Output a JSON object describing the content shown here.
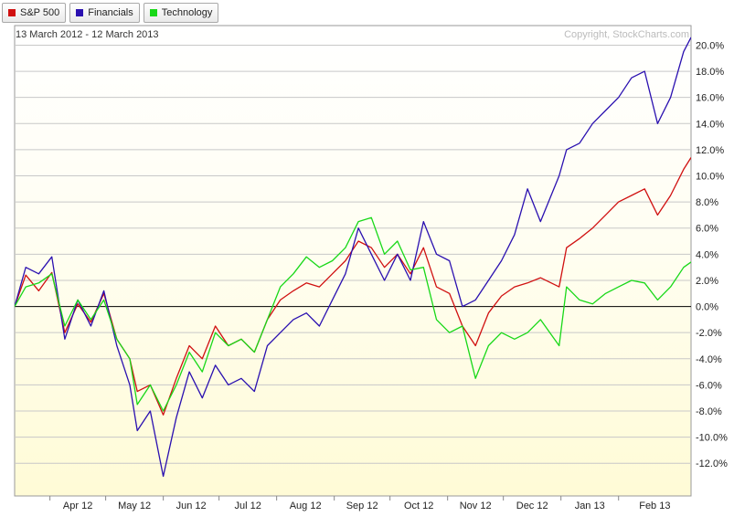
{
  "legend": [
    {
      "label": "S&P 500",
      "color": "#d01010"
    },
    {
      "label": "Financials",
      "color": "#2a10b0"
    },
    {
      "label": "Technology",
      "color": "#18d818"
    }
  ],
  "date_range": "13 March 2012 - 12 March 2013",
  "copyright": "Copyright, StockCharts.com",
  "chart_data": {
    "type": "line",
    "title": "",
    "xlabel": "",
    "ylabel": "",
    "ylim": [
      -14.5,
      21.5
    ],
    "ytick_values": [
      20,
      18,
      16,
      14,
      12,
      10,
      8,
      6,
      4,
      2,
      0,
      -2,
      -4,
      -6,
      -8,
      -10,
      -12
    ],
    "yticks": [
      "20.0%",
      "18.0%",
      "16.0%",
      "14.0%",
      "12.0%",
      "10.0%",
      "8.0%",
      "6.0%",
      "4.0%",
      "2.0%",
      "0.0%",
      "-2.0%",
      "-4.0%",
      "-6.0%",
      "-8.0%",
      "-10.0%",
      "-12.0%"
    ],
    "xticks": [
      "Apr 12",
      "May 12",
      "Jun 12",
      "Jul 12",
      "Aug 12",
      "Sep 12",
      "Oct 12",
      "Nov 12",
      "Dec 12",
      "Jan 13",
      "Feb 13"
    ],
    "xtick_dates": [
      "2012-04-01",
      "2012-05-01",
      "2012-06-01",
      "2012-07-01",
      "2012-08-01",
      "2012-09-01",
      "2012-10-01",
      "2012-11-01",
      "2012-12-01",
      "2013-01-01",
      "2013-02-01"
    ],
    "xlim": [
      "2012-03-13",
      "2013-03-12"
    ],
    "grid": true,
    "legend_position": "top-left",
    "series": [
      {
        "name": "S&P 500",
        "color": "#d01010",
        "points": [
          [
            "2012-03-13",
            0
          ],
          [
            "2012-03-19",
            2.4
          ],
          [
            "2012-03-26",
            1.2
          ],
          [
            "2012-04-02",
            2.6
          ],
          [
            "2012-04-09",
            -2
          ],
          [
            "2012-04-16",
            0.2
          ],
          [
            "2012-04-23",
            -1.2
          ],
          [
            "2012-04-30",
            1.0
          ],
          [
            "2012-05-07",
            -2.5
          ],
          [
            "2012-05-14",
            -4
          ],
          [
            "2012-05-18",
            -6.5
          ],
          [
            "2012-05-25",
            -6
          ],
          [
            "2012-06-01",
            -8.3
          ],
          [
            "2012-06-08",
            -5.5
          ],
          [
            "2012-06-15",
            -3
          ],
          [
            "2012-06-22",
            -4
          ],
          [
            "2012-06-29",
            -1.5
          ],
          [
            "2012-07-06",
            -3
          ],
          [
            "2012-07-13",
            -2.5
          ],
          [
            "2012-07-20",
            -3.5
          ],
          [
            "2012-07-27",
            -1
          ],
          [
            "2012-08-03",
            0.5
          ],
          [
            "2012-08-10",
            1.2
          ],
          [
            "2012-08-17",
            1.8
          ],
          [
            "2012-08-24",
            1.5
          ],
          [
            "2012-08-31",
            2.5
          ],
          [
            "2012-09-07",
            3.5
          ],
          [
            "2012-09-14",
            5
          ],
          [
            "2012-09-21",
            4.5
          ],
          [
            "2012-09-28",
            3.0
          ],
          [
            "2012-10-05",
            4
          ],
          [
            "2012-10-12",
            2.5
          ],
          [
            "2012-10-19",
            4.5
          ],
          [
            "2012-10-26",
            1.5
          ],
          [
            "2012-11-02",
            1
          ],
          [
            "2012-11-09",
            -1.5
          ],
          [
            "2012-11-16",
            -3
          ],
          [
            "2012-11-23",
            -0.5
          ],
          [
            "2012-11-30",
            0.8
          ],
          [
            "2012-12-07",
            1.5
          ],
          [
            "2012-12-14",
            1.8
          ],
          [
            "2012-12-21",
            2.2
          ],
          [
            "2012-12-31",
            1.5
          ],
          [
            "2013-01-04",
            4.5
          ],
          [
            "2013-01-11",
            5.2
          ],
          [
            "2013-01-18",
            6
          ],
          [
            "2013-01-25",
            7
          ],
          [
            "2013-02-01",
            8
          ],
          [
            "2013-02-08",
            8.5
          ],
          [
            "2013-02-15",
            9
          ],
          [
            "2013-02-22",
            7
          ],
          [
            "2013-03-01",
            8.5
          ],
          [
            "2013-03-08",
            10.5
          ],
          [
            "2013-03-12",
            11.4
          ]
        ]
      },
      {
        "name": "Financials",
        "color": "#2a10b0",
        "points": [
          [
            "2012-03-13",
            0
          ],
          [
            "2012-03-19",
            3
          ],
          [
            "2012-03-26",
            2.5
          ],
          [
            "2012-04-02",
            3.8
          ],
          [
            "2012-04-09",
            -2.5
          ],
          [
            "2012-04-16",
            0.5
          ],
          [
            "2012-04-23",
            -1.5
          ],
          [
            "2012-04-30",
            1.2
          ],
          [
            "2012-05-07",
            -3
          ],
          [
            "2012-05-14",
            -6
          ],
          [
            "2012-05-18",
            -9.5
          ],
          [
            "2012-05-25",
            -8
          ],
          [
            "2012-06-01",
            -13
          ],
          [
            "2012-06-08",
            -8.5
          ],
          [
            "2012-06-15",
            -5
          ],
          [
            "2012-06-22",
            -7
          ],
          [
            "2012-06-29",
            -4.5
          ],
          [
            "2012-07-06",
            -6
          ],
          [
            "2012-07-13",
            -5.5
          ],
          [
            "2012-07-20",
            -6.5
          ],
          [
            "2012-07-27",
            -3
          ],
          [
            "2012-08-03",
            -2
          ],
          [
            "2012-08-10",
            -1
          ],
          [
            "2012-08-17",
            -0.5
          ],
          [
            "2012-08-24",
            -1.5
          ],
          [
            "2012-08-31",
            0.5
          ],
          [
            "2012-09-07",
            2.5
          ],
          [
            "2012-09-14",
            6
          ],
          [
            "2012-09-21",
            4
          ],
          [
            "2012-09-28",
            2
          ],
          [
            "2012-10-05",
            4
          ],
          [
            "2012-10-12",
            2
          ],
          [
            "2012-10-19",
            6.5
          ],
          [
            "2012-10-26",
            4
          ],
          [
            "2012-11-02",
            3.5
          ],
          [
            "2012-11-09",
            0
          ],
          [
            "2012-11-16",
            0.5
          ],
          [
            "2012-11-23",
            2
          ],
          [
            "2012-11-30",
            3.5
          ],
          [
            "2012-12-07",
            5.5
          ],
          [
            "2012-12-14",
            9
          ],
          [
            "2012-12-21",
            6.5
          ],
          [
            "2012-12-31",
            10
          ],
          [
            "2013-01-04",
            12
          ],
          [
            "2013-01-11",
            12.5
          ],
          [
            "2013-01-18",
            14
          ],
          [
            "2013-01-25",
            15
          ],
          [
            "2013-02-01",
            16
          ],
          [
            "2013-02-08",
            17.5
          ],
          [
            "2013-02-15",
            18
          ],
          [
            "2013-02-22",
            14
          ],
          [
            "2013-03-01",
            16
          ],
          [
            "2013-03-08",
            19.5
          ],
          [
            "2013-03-12",
            20.6
          ]
        ]
      },
      {
        "name": "Technology",
        "color": "#18d818",
        "points": [
          [
            "2012-03-13",
            0
          ],
          [
            "2012-03-19",
            1.5
          ],
          [
            "2012-03-26",
            1.8
          ],
          [
            "2012-04-02",
            2.5
          ],
          [
            "2012-04-09",
            -1.5
          ],
          [
            "2012-04-16",
            0.5
          ],
          [
            "2012-04-23",
            -1
          ],
          [
            "2012-04-30",
            0.5
          ],
          [
            "2012-05-07",
            -2.5
          ],
          [
            "2012-05-14",
            -4
          ],
          [
            "2012-05-18",
            -7.5
          ],
          [
            "2012-05-25",
            -6
          ],
          [
            "2012-06-01",
            -8
          ],
          [
            "2012-06-08",
            -6
          ],
          [
            "2012-06-15",
            -3.5
          ],
          [
            "2012-06-22",
            -5
          ],
          [
            "2012-06-29",
            -2
          ],
          [
            "2012-07-06",
            -3
          ],
          [
            "2012-07-13",
            -2.5
          ],
          [
            "2012-07-20",
            -3.5
          ],
          [
            "2012-07-27",
            -1
          ],
          [
            "2012-08-03",
            1.5
          ],
          [
            "2012-08-10",
            2.5
          ],
          [
            "2012-08-17",
            3.8
          ],
          [
            "2012-08-24",
            3
          ],
          [
            "2012-08-31",
            3.5
          ],
          [
            "2012-09-07",
            4.5
          ],
          [
            "2012-09-14",
            6.5
          ],
          [
            "2012-09-21",
            6.8
          ],
          [
            "2012-09-28",
            4
          ],
          [
            "2012-10-05",
            5
          ],
          [
            "2012-10-12",
            2.8
          ],
          [
            "2012-10-19",
            3
          ],
          [
            "2012-10-26",
            -1
          ],
          [
            "2012-11-02",
            -2
          ],
          [
            "2012-11-09",
            -1.5
          ],
          [
            "2012-11-16",
            -5.5
          ],
          [
            "2012-11-23",
            -3
          ],
          [
            "2012-11-30",
            -2
          ],
          [
            "2012-12-07",
            -2.5
          ],
          [
            "2012-12-14",
            -2
          ],
          [
            "2012-12-21",
            -1
          ],
          [
            "2012-12-31",
            -3
          ],
          [
            "2013-01-04",
            1.5
          ],
          [
            "2013-01-11",
            0.5
          ],
          [
            "2013-01-18",
            0.2
          ],
          [
            "2013-01-25",
            1
          ],
          [
            "2013-02-01",
            1.5
          ],
          [
            "2013-02-08",
            2
          ],
          [
            "2013-02-15",
            1.8
          ],
          [
            "2013-02-22",
            0.5
          ],
          [
            "2013-03-01",
            1.5
          ],
          [
            "2013-03-08",
            3
          ],
          [
            "2013-03-12",
            3.4
          ]
        ]
      }
    ]
  }
}
